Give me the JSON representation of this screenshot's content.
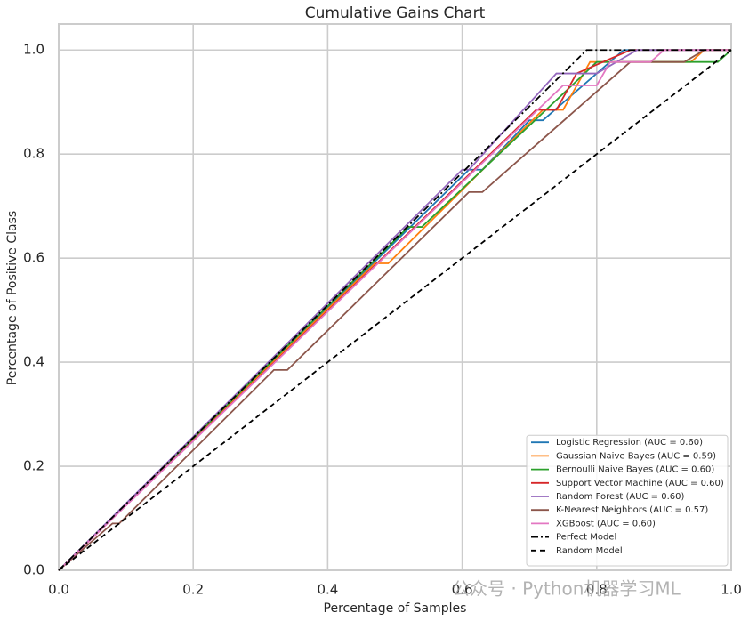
{
  "chart_data": {
    "type": "line",
    "title": "Cumulative Gains Chart",
    "xlabel": "Percentage of Samples",
    "ylabel": "Percentage of Positive Class",
    "xlim": [
      0,
      1
    ],
    "ylim": [
      0,
      1.05
    ],
    "xticks": [
      {
        "value": 0,
        "label": "0.0"
      },
      0.2,
      0.4,
      0.6,
      0.8,
      {
        "value": 1,
        "label": "1.0"
      }
    ],
    "yticks": [
      {
        "value": 0,
        "label": "0.0"
      },
      0.2,
      0.4,
      0.6,
      0.8,
      {
        "value": 1,
        "label": "1.0"
      }
    ],
    "grid": true,
    "legend": "lower right",
    "annotation": "公众号 · Python机器学习ML",
    "series": [
      {
        "name": "Logistic Regression (AUC = 0.60)",
        "color": "#1f77b4",
        "linestyle": "solid",
        "x": [
          0,
          0.61,
          0.63,
          0.7,
          0.72,
          0.84,
          1
        ],
        "values": [
          0,
          0.77,
          0.77,
          0.865,
          0.865,
          1,
          1
        ]
      },
      {
        "name": "Gaussian Naive Bayes (AUC = 0.59)",
        "color": "#ff7f0e",
        "linestyle": "solid",
        "x": [
          0,
          0.47,
          0.49,
          0.72,
          0.75,
          0.79,
          0.94,
          0.96,
          1
        ],
        "values": [
          0,
          0.59,
          0.59,
          0.885,
          0.885,
          0.977,
          0.977,
          1,
          1
        ]
      },
      {
        "name": "Bernoulli Naive Bayes (AUC = 0.60)",
        "color": "#2ca02c",
        "linestyle": "solid",
        "x": [
          0,
          0.52,
          0.54,
          0.8,
          0.98,
          1
        ],
        "values": [
          0,
          0.66,
          0.66,
          0.977,
          0.977,
          1
        ]
      },
      {
        "name": "Support Vector Machine (AUC = 0.60)",
        "color": "#d62728",
        "linestyle": "solid",
        "x": [
          0,
          0.71,
          0.74,
          0.77,
          0.85,
          1
        ],
        "values": [
          0,
          0.885,
          0.885,
          0.955,
          1,
          1
        ]
      },
      {
        "name": "Random Forest (AUC = 0.60)",
        "color": "#9467bd",
        "linestyle": "solid",
        "x": [
          0,
          0.6,
          0.61,
          0.74,
          0.8,
          0.86,
          1
        ],
        "values": [
          0,
          0.77,
          0.77,
          0.955,
          0.955,
          1,
          1
        ]
      },
      {
        "name": "K-Nearest Neighbors (AUC = 0.57)",
        "color": "#8c564b",
        "linestyle": "solid",
        "x": [
          0,
          0.08,
          0.09,
          0.32,
          0.34,
          0.61,
          0.63,
          0.85,
          0.93,
          0.96,
          1
        ],
        "values": [
          0,
          0.09,
          0.09,
          0.385,
          0.385,
          0.727,
          0.727,
          0.977,
          0.977,
          1,
          1
        ]
      },
      {
        "name": "XGBoost (AUC = 0.60)",
        "color": "#e377c2",
        "linestyle": "solid",
        "x": [
          0,
          0.75,
          0.8,
          0.82,
          0.88,
          0.9,
          1
        ],
        "values": [
          0,
          0.932,
          0.932,
          0.977,
          0.977,
          1,
          1
        ]
      },
      {
        "name": "Perfect Model",
        "color": "#000000",
        "linestyle": "dashdot",
        "x": [
          0,
          0.785,
          1
        ],
        "values": [
          0,
          1,
          1
        ]
      },
      {
        "name": "Random Model",
        "color": "#000000",
        "linestyle": "dashed",
        "x": [
          0,
          1
        ],
        "values": [
          0,
          1
        ]
      }
    ]
  }
}
